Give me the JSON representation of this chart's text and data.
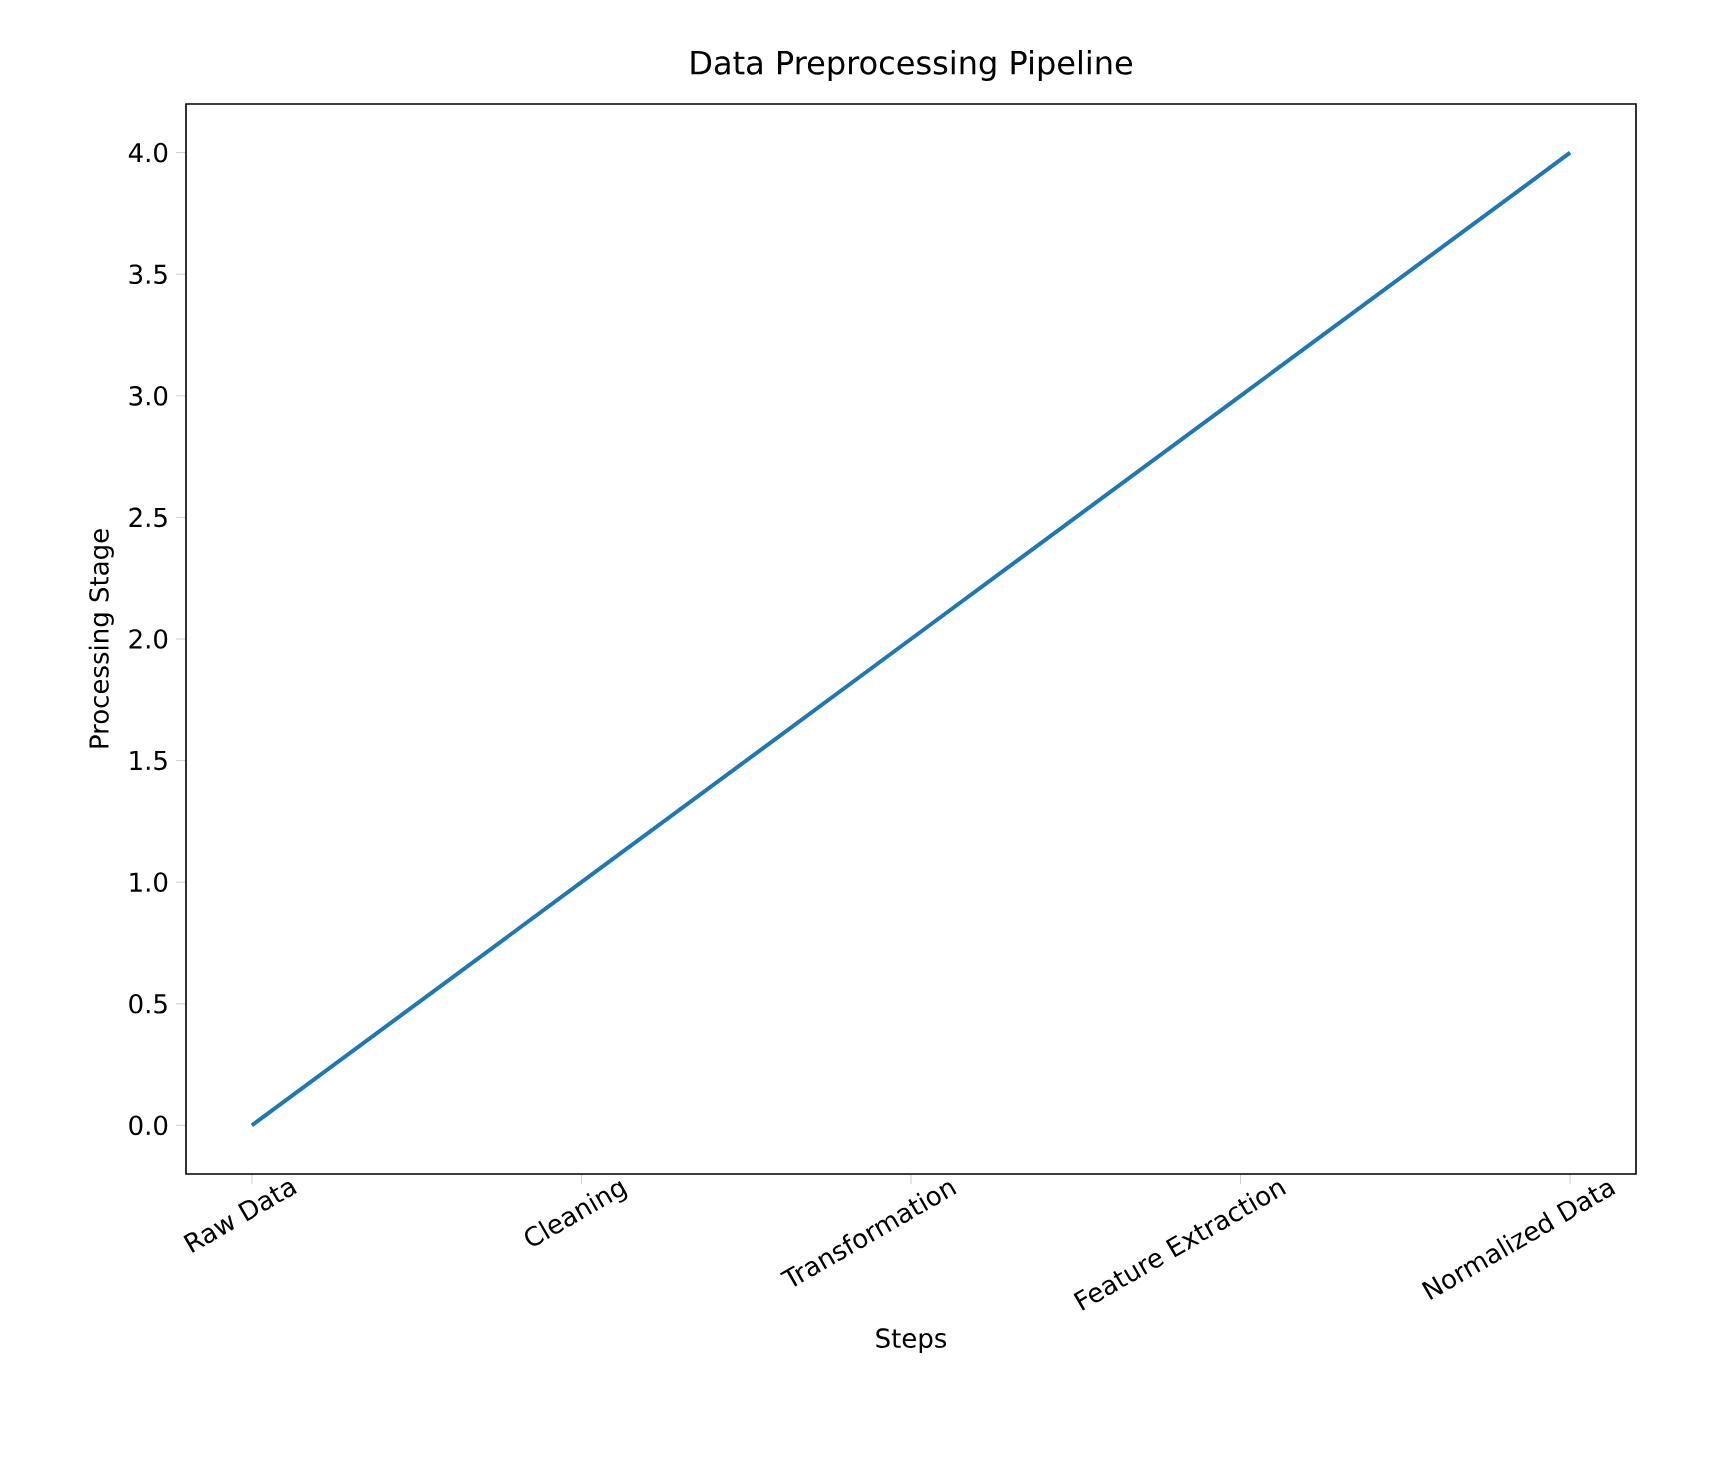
{
  "chart_data": {
    "type": "line",
    "title": "Data Preprocessing Pipeline",
    "xlabel": "Steps",
    "ylabel": "Processing Stage",
    "categories": [
      "Raw Data",
      "Cleaning",
      "Transformation",
      "Feature Extraction",
      "Normalized Data"
    ],
    "values": [
      0,
      1,
      2,
      3,
      4
    ],
    "color": "#1f77b4",
    "ylim": [
      -0.2,
      4.2
    ],
    "yticks": [
      {
        "value": 0,
        "label": "0.0"
      },
      0.5,
      {
        "value": 1,
        "label": "1.0"
      },
      1.5,
      {
        "value": 2,
        "label": "2.0"
      },
      2.5,
      {
        "value": 3,
        "label": "3.0"
      },
      3.5,
      {
        "value": 4,
        "label": "4.0"
      }
    ]
  }
}
